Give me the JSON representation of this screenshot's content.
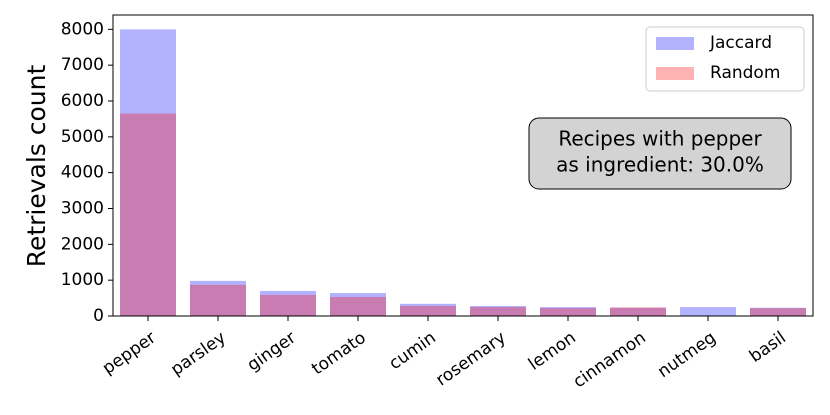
{
  "chart_data": {
    "type": "bar",
    "ylabel": "Retrievals count",
    "categories": [
      "pepper",
      "parsley",
      "ginger",
      "tomato",
      "cumin",
      "rosemary",
      "lemon",
      "cinnamon",
      "nutmeg",
      "basil"
    ],
    "series": [
      {
        "name": "Jaccard",
        "color": "#0000ff",
        "values": [
          8000,
          980,
          700,
          640,
          340,
          280,
          250,
          230,
          250,
          230
        ]
      },
      {
        "name": "Random",
        "color": "#ff0000",
        "values": [
          5650,
          870,
          590,
          530,
          280,
          250,
          220,
          240,
          0,
          220
        ]
      }
    ],
    "alpha": 0.3,
    "ylim": [
      0,
      8400
    ],
    "yticks": [
      0,
      1000,
      2000,
      3000,
      4000,
      5000,
      6000,
      7000,
      8000
    ],
    "legend": "upper right",
    "annotation": [
      "Recipes with pepper",
      "as ingredient: 30.0%"
    ]
  }
}
